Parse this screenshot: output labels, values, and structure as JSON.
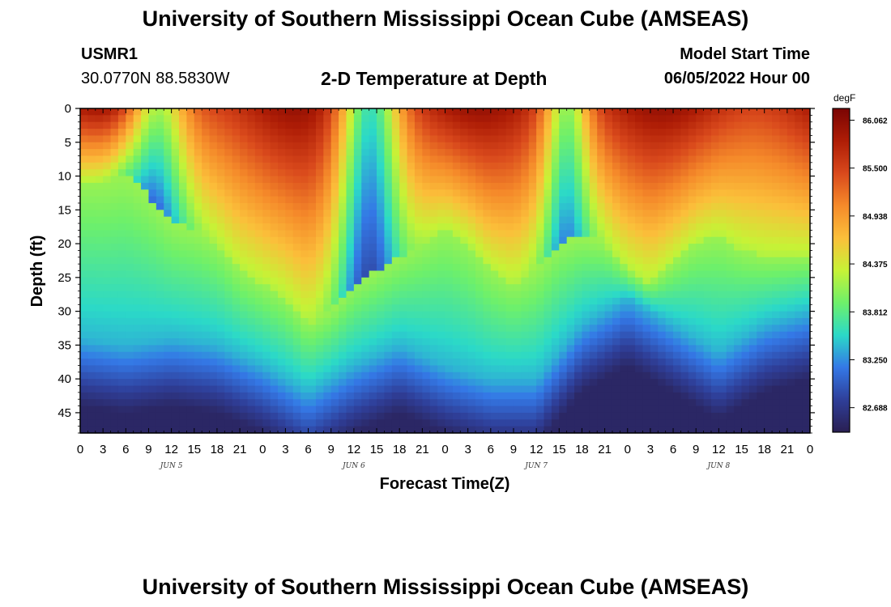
{
  "header": {
    "title": "University of Southern Mississippi Ocean Cube (AMSEAS)",
    "station": "USMR1",
    "coordinates": "30.0770N  88.5830W",
    "subtitle": "2-D Temperature at Depth",
    "model_start_label": "Model Start Time",
    "model_start_value": "06/05/2022 Hour 00"
  },
  "footer": {
    "title": "University of Southern Mississippi Ocean Cube (AMSEAS)"
  },
  "chart_data": {
    "type": "heatmap",
    "title": "2-D Temperature at Depth",
    "xlabel": "Forecast Time(Z)",
    "ylabel": "Depth (ft)",
    "x_range_hours": [
      0,
      96
    ],
    "y_range_ft": [
      0,
      48
    ],
    "x_tick_labels": [
      "0",
      "3",
      "6",
      "9",
      "12",
      "15",
      "18",
      "21",
      "0",
      "3",
      "6",
      "9",
      "12",
      "15",
      "18",
      "21",
      "0",
      "3",
      "6",
      "9",
      "12",
      "15",
      "18",
      "21",
      "0",
      "3",
      "6",
      "9",
      "12",
      "15",
      "18",
      "21",
      "0"
    ],
    "day_labels": [
      {
        "label": "JUN 5",
        "hour": 12
      },
      {
        "label": "JUN 6",
        "hour": 36
      },
      {
        "label": "JUN 7",
        "hour": 60
      },
      {
        "label": "JUN 8",
        "hour": 84
      }
    ],
    "y_ticks": [
      0,
      5,
      10,
      15,
      20,
      25,
      30,
      35,
      40,
      45
    ],
    "colorbar": {
      "unit": "degF",
      "min": 82.4,
      "max": 86.2,
      "tick_labels": [
        "86.062",
        "85.500",
        "84.938",
        "84.375",
        "83.812",
        "83.250",
        "82.688"
      ],
      "colors": [
        "#2a1f52",
        "#2f3f99",
        "#3478e6",
        "#2bd9c8",
        "#6ef06a",
        "#c7f236",
        "#fbbf3a",
        "#f58a2a",
        "#d9491c",
        "#ae1d06",
        "#7a0403"
      ]
    },
    "warm_layer_bottom_ft": {
      "hours": [
        0,
        3,
        6,
        9,
        12,
        15,
        18,
        21,
        24,
        27,
        30,
        33,
        36,
        39,
        42,
        45,
        48,
        51,
        54,
        57,
        60,
        63,
        66,
        69,
        72,
        75,
        78,
        81,
        84,
        87,
        90,
        93,
        96
      ],
      "values": [
        11,
        11,
        10,
        13,
        17,
        18,
        20,
        24,
        26,
        28,
        32,
        30,
        26,
        24,
        22,
        20,
        18,
        20,
        24,
        26,
        24,
        20,
        19,
        20,
        24,
        26,
        23,
        20,
        19,
        21,
        22,
        22,
        22
      ]
    },
    "cold_layer_top_ft": {
      "hours": [
        0,
        6,
        12,
        18,
        24,
        30,
        36,
        42,
        48,
        54,
        60,
        66,
        72,
        78,
        84,
        90,
        96
      ],
      "values": [
        34,
        35,
        34,
        35,
        38,
        42,
        38,
        35,
        38,
        40,
        40,
        32,
        28,
        32,
        36,
        32,
        30
      ]
    }
  }
}
